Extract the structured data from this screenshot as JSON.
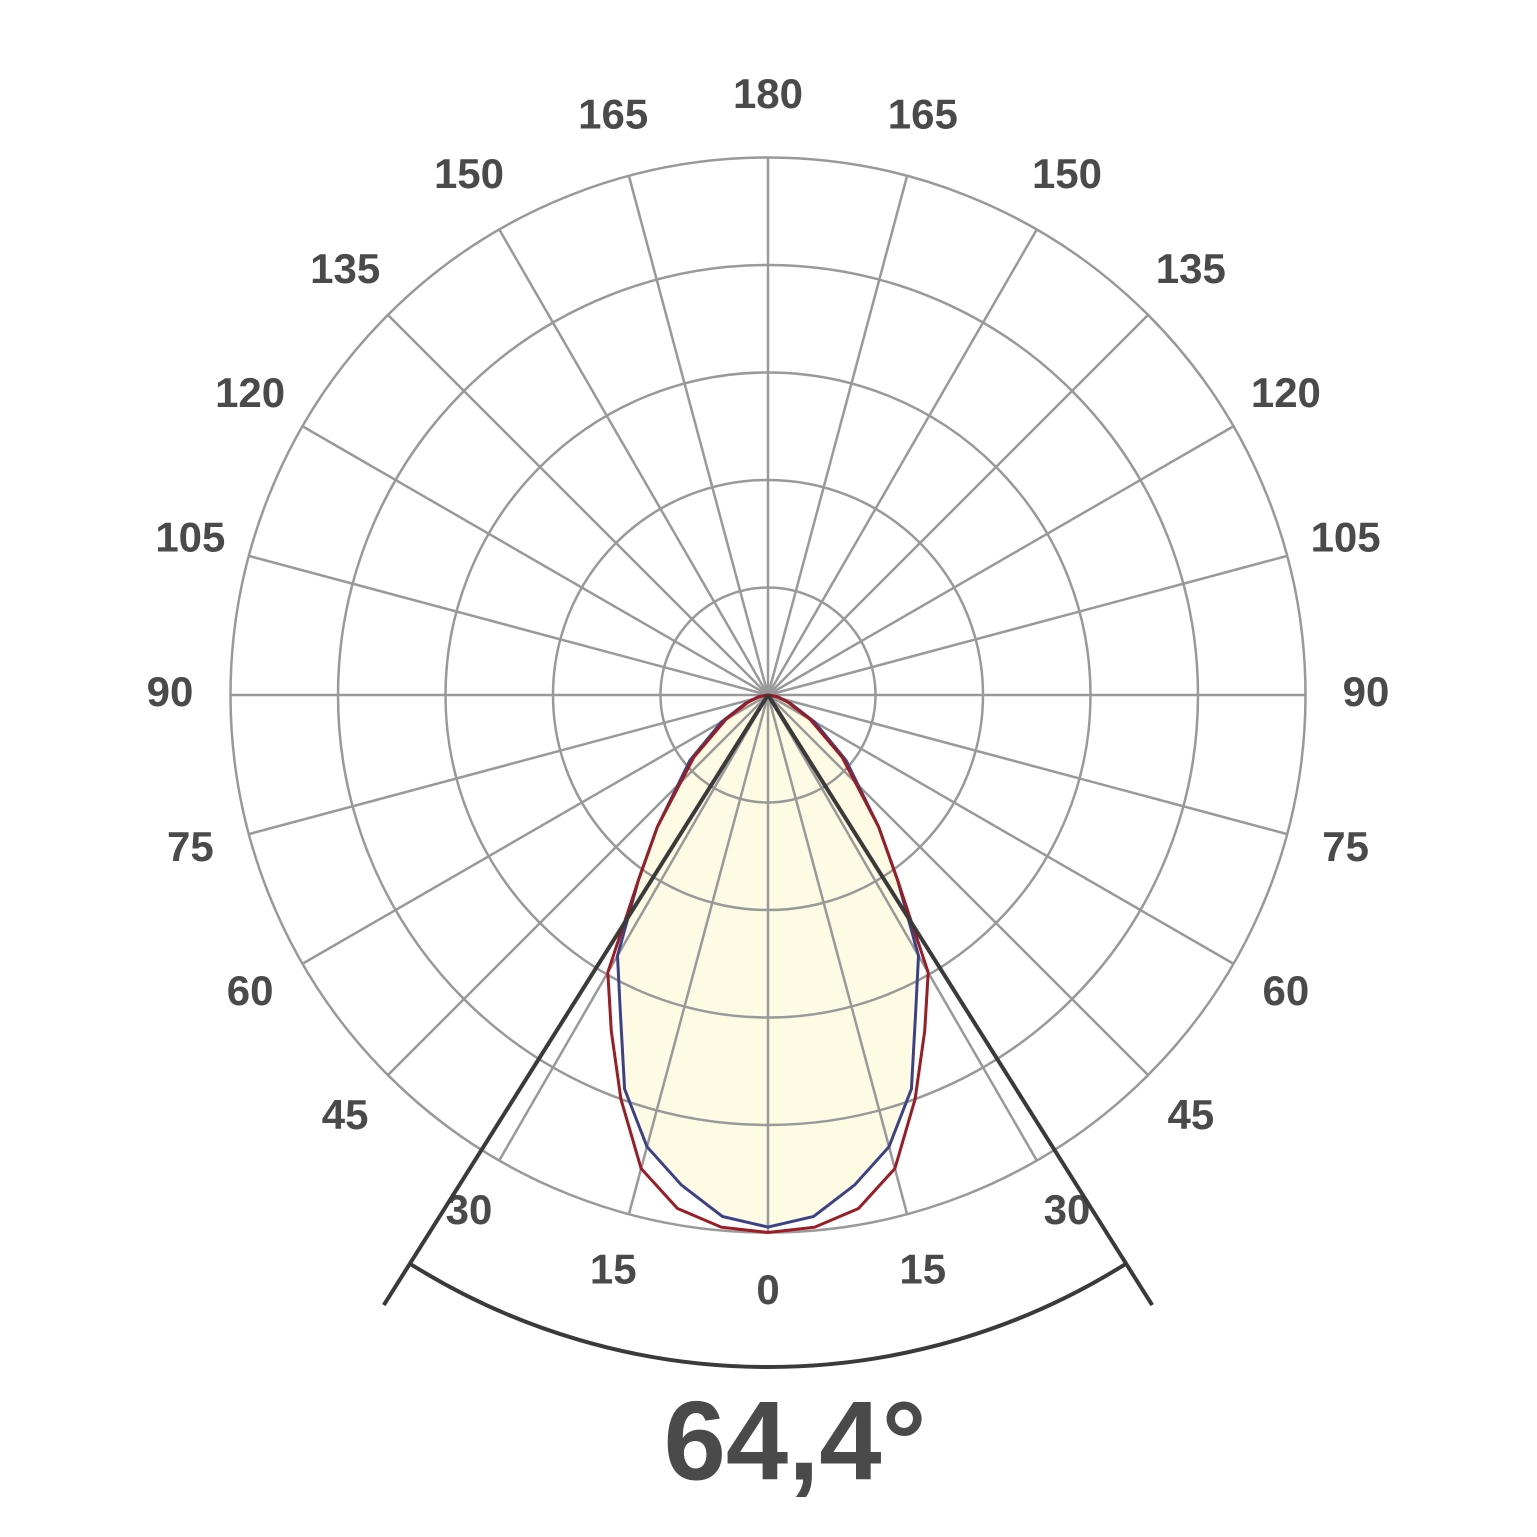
{
  "chart_data": {
    "type": "polar",
    "angle_ticks": [
      0,
      15,
      30,
      45,
      60,
      75,
      90,
      105,
      120,
      135,
      150,
      165,
      180
    ],
    "rlim": [
      0,
      5
    ],
    "rticks": [
      1,
      2,
      3,
      4,
      5
    ],
    "angles": [
      0,
      5,
      10,
      15,
      20,
      25,
      30,
      35,
      40,
      50,
      60,
      70,
      80,
      90
    ],
    "series": [
      {
        "color": "#3d4286",
        "fill": "#fdfbe4",
        "values": [
          4.95,
          4.87,
          4.63,
          4.35,
          3.9,
          3.25,
          2.8,
          2.1,
          1.6,
          0.95,
          0.5,
          0.22,
          0.09,
          0
        ]
      },
      {
        "color": "#9b1c22",
        "values": [
          5.0,
          4.97,
          4.85,
          4.56,
          4.0,
          3.45,
          2.98,
          2.1,
          1.6,
          0.9,
          0.45,
          0.2,
          0.08,
          0
        ]
      }
    ],
    "beam_angle": {
      "value": 64.4,
      "label": "64,4°"
    }
  }
}
